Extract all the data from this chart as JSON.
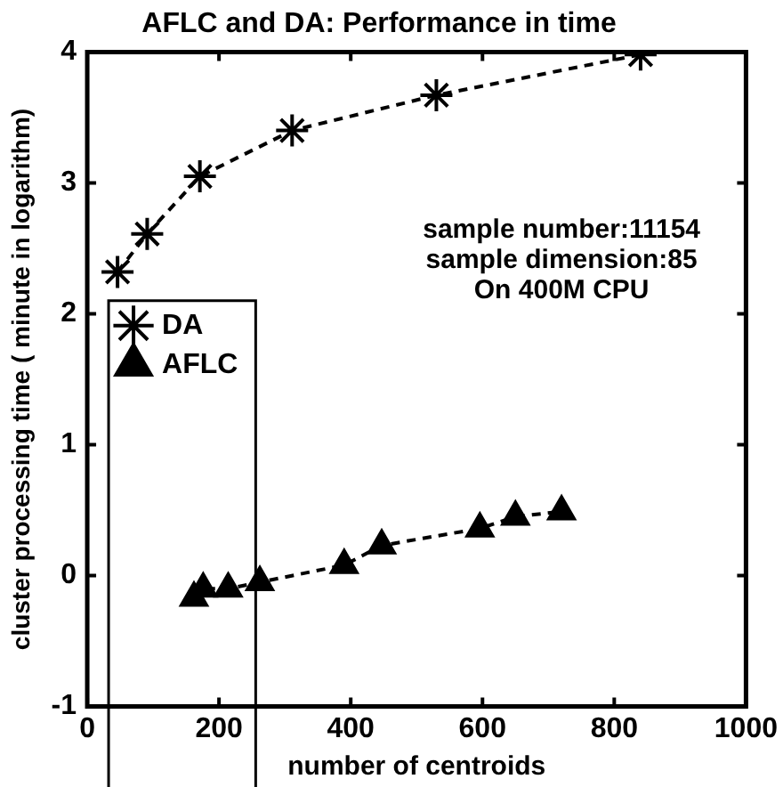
{
  "chart_data": {
    "type": "line",
    "title": "AFLC and DA: Performance in time",
    "xlabel": "number of centroids",
    "ylabel": "cluster processing time ( minute in logarithm)",
    "annotations": [
      "sample number:11154",
      "sample dimension:85",
      "On 400M CPU"
    ],
    "xlim": [
      0,
      1000
    ],
    "xticks": [
      0,
      200,
      400,
      600,
      800,
      1000
    ],
    "ylim": [
      -1,
      4
    ],
    "yticks": [
      -1,
      0,
      1,
      2,
      3,
      4
    ],
    "grid": false,
    "legend": "top left",
    "line_style": "dashed",
    "series": [
      {
        "name": "DA",
        "color": "#000000",
        "marker": "cross",
        "x": [
          46,
          91,
          171,
          311,
          530,
          840
        ],
        "values": [
          2.32,
          2.61,
          3.05,
          3.4,
          3.67,
          3.98
        ]
      },
      {
        "name": "AFLC",
        "color": "#000000",
        "marker": "triangle",
        "x": [
          162,
          176,
          214,
          262,
          390,
          447,
          596,
          650,
          720
        ],
        "values": [
          -0.17,
          -0.1,
          -0.1,
          -0.05,
          0.08,
          0.23,
          0.36,
          0.45,
          0.49
        ]
      }
    ]
  }
}
